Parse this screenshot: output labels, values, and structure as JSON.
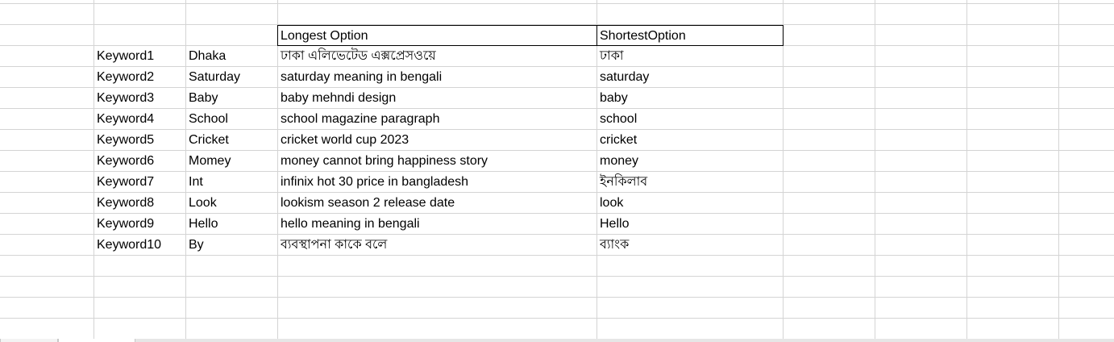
{
  "grid": {
    "header_row": {
      "longest_label": "Longest Option",
      "shortest_label": "ShortestOption"
    },
    "rows": [
      {
        "keyword": "Keyword1",
        "word": "Dhaka",
        "longest": "ঢাকা এলিভেটেড এক্সপ্রেসওয়ে",
        "shortest": "ঢাকা"
      },
      {
        "keyword": "Keyword2",
        "word": "Saturday",
        "longest": "saturday meaning in bengali",
        "shortest": "saturday"
      },
      {
        "keyword": "Keyword3",
        "word": "Baby",
        "longest": "baby mehndi design",
        "shortest": "baby"
      },
      {
        "keyword": "Keyword4",
        "word": "School",
        "longest": "school magazine paragraph",
        "shortest": "school"
      },
      {
        "keyword": "Keyword5",
        "word": "Cricket",
        "longest": "cricket world cup 2023",
        "shortest": "cricket"
      },
      {
        "keyword": "Keyword6",
        "word": "Momey",
        "longest": "money cannot bring happiness story",
        "shortest": "money"
      },
      {
        "keyword": "Keyword7",
        "word": "Int",
        "longest": "infinix hot 30 price in bangladesh",
        "shortest": "ইনকিলাব"
      },
      {
        "keyword": "Keyword8",
        "word": "Look",
        "longest": "lookism season 2 release date",
        "shortest": "look"
      },
      {
        "keyword": "Keyword9",
        "word": "Hello",
        "longest": "hello meaning in bengali",
        "shortest": "Hello"
      },
      {
        "keyword": "Keyword10",
        "word": "By",
        "longest": "ব্যবস্থাপনা কাকে বলে",
        "shortest": "ব্যাংক"
      }
    ]
  },
  "colors": {
    "gridline": "#d4d4d4",
    "header_border": "#000000",
    "text": "#000000"
  }
}
